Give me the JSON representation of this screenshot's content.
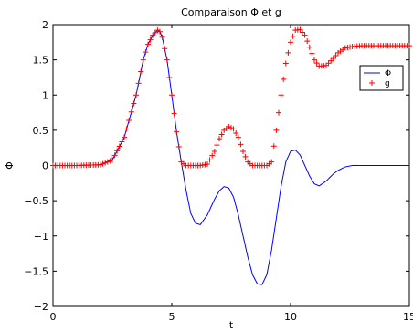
{
  "chart_data": {
    "type": "line",
    "title": "Comparaison Φ et g",
    "xlabel": "t",
    "ylabel": "Φ",
    "xlim": [
      0,
      15
    ],
    "ylim": [
      -2,
      2
    ],
    "xticks": [
      "0",
      "5",
      "10",
      "15"
    ],
    "yticks": [
      "−2",
      "−1.5",
      "−1",
      "−0.5",
      "0",
      "0.5",
      "1",
      "1.5",
      "2"
    ],
    "grid": false,
    "legend_position": "top-right",
    "series": [
      {
        "name": "Φ",
        "style": "line",
        "color": "#0000ff",
        "x": [
          0,
          1,
          2,
          2.5,
          3,
          3.5,
          3.8,
          4.0,
          4.2,
          4.4,
          4.5,
          4.6,
          4.8,
          5.0,
          5.2,
          5.4,
          5.6,
          5.8,
          6.0,
          6.2,
          6.5,
          6.8,
          7.0,
          7.2,
          7.4,
          7.6,
          7.8,
          8.0,
          8.2,
          8.4,
          8.6,
          8.8,
          9.0,
          9.2,
          9.4,
          9.6,
          9.8,
          10.0,
          10.2,
          10.4,
          10.6,
          10.8,
          11.0,
          11.2,
          11.5,
          11.8,
          12.0,
          12.3,
          12.6,
          13.0,
          14.0,
          15.0
        ],
        "y": [
          0,
          0,
          0.01,
          0.08,
          0.4,
          1.0,
          1.5,
          1.72,
          1.85,
          1.92,
          1.9,
          1.82,
          1.5,
          1.0,
          0.48,
          0.05,
          -0.35,
          -0.68,
          -0.82,
          -0.84,
          -0.7,
          -0.48,
          -0.36,
          -0.3,
          -0.32,
          -0.45,
          -0.7,
          -1.0,
          -1.3,
          -1.55,
          -1.68,
          -1.69,
          -1.55,
          -1.2,
          -0.75,
          -0.3,
          0.05,
          0.2,
          0.22,
          0.15,
          0.0,
          -0.15,
          -0.26,
          -0.29,
          -0.22,
          -0.12,
          -0.07,
          -0.02,
          0.0,
          0.0,
          0.0,
          0.0
        ]
      },
      {
        "name": "g",
        "style": "marker-plus",
        "color": "#ff0000",
        "x": [
          0,
          1,
          2,
          2.5,
          3,
          3.5,
          3.8,
          4.0,
          4.2,
          4.4,
          4.5,
          4.6,
          4.8,
          5.0,
          5.2,
          5.4,
          5.6,
          5.8,
          6.0,
          6.2,
          6.5,
          6.8,
          7.0,
          7.2,
          7.4,
          7.6,
          7.8,
          8.0,
          8.2,
          8.4,
          8.6,
          8.8,
          9.0,
          9.2,
          9.4,
          9.6,
          9.8,
          10.0,
          10.2,
          10.4,
          10.6,
          10.8,
          11.0,
          11.2,
          11.5,
          11.8,
          12.0,
          12.3,
          12.6,
          13.0,
          14.0,
          15.0
        ],
        "y": [
          0,
          0,
          0.01,
          0.08,
          0.4,
          1.0,
          1.5,
          1.72,
          1.85,
          1.92,
          1.9,
          1.82,
          1.5,
          1.0,
          0.48,
          0.05,
          0,
          0,
          0,
          0,
          0.02,
          0.2,
          0.38,
          0.5,
          0.55,
          0.52,
          0.4,
          0.2,
          0.05,
          0,
          0,
          0,
          0,
          0.05,
          0.5,
          1.0,
          1.45,
          1.75,
          1.92,
          1.93,
          1.85,
          1.68,
          1.5,
          1.41,
          1.42,
          1.52,
          1.6,
          1.67,
          1.69,
          1.7,
          1.7,
          1.7
        ]
      }
    ]
  }
}
